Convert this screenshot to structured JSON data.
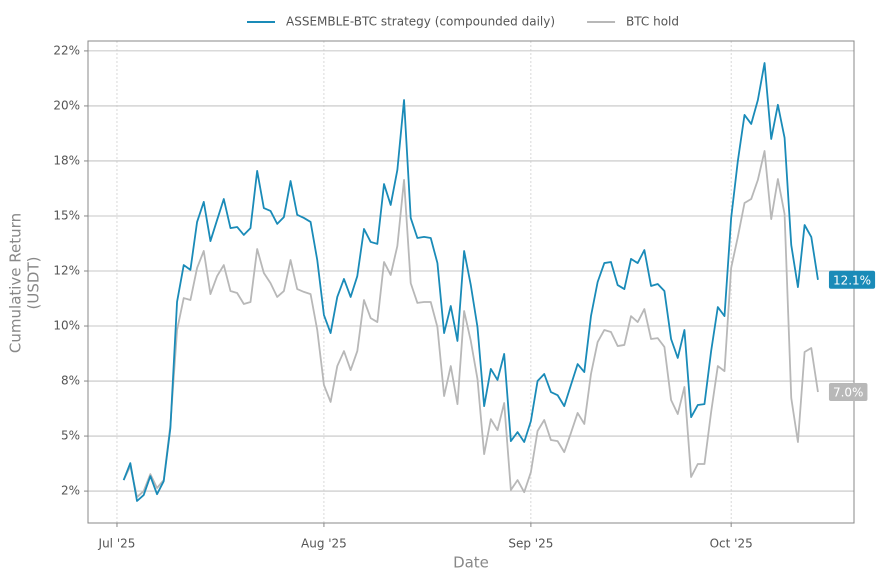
{
  "chart_data": {
    "type": "line",
    "xlabel": "Date",
    "ylabel": [
      "Cumulative Return",
      "(USDT)"
    ],
    "categories": [
      "Jul '25",
      null,
      null,
      null,
      null,
      null,
      null,
      null,
      null,
      null,
      null,
      null,
      null,
      null,
      null,
      null,
      null,
      null,
      null,
      null,
      null,
      null,
      null,
      null,
      null,
      null,
      null,
      null,
      null,
      null,
      null,
      "Aug '25",
      null,
      null,
      null,
      null,
      null,
      null,
      null,
      null,
      null,
      null,
      null,
      null,
      null,
      null,
      null,
      null,
      null,
      null,
      null,
      null,
      null,
      null,
      null,
      null,
      null,
      null,
      null,
      null,
      null,
      null,
      "Sep '25",
      null,
      null,
      null,
      null,
      null,
      null,
      null,
      null,
      null,
      null,
      null,
      null,
      null,
      null,
      null,
      null,
      null,
      null,
      null,
      null,
      null,
      null,
      null,
      null,
      null,
      null,
      null,
      null,
      null,
      "Oct '25",
      null,
      null,
      null,
      null,
      null,
      null,
      null,
      null,
      null,
      null,
      null,
      null,
      null
    ],
    "series": [
      {
        "name": "ASSEMBLE-BTC strategy (compounded daily)",
        "color": "#1a8bb8",
        "values": [
          null,
          3.0,
          3.77,
          2.05,
          2.32,
          3.18,
          2.36,
          2.95,
          5.36,
          11.1,
          12.77,
          12.55,
          14.73,
          15.64,
          13.86,
          14.82,
          15.77,
          14.45,
          14.5,
          14.14,
          14.45,
          17.05,
          15.36,
          15.23,
          14.64,
          14.95,
          16.59,
          15.05,
          14.91,
          14.73,
          13.0,
          10.5,
          9.68,
          11.32,
          12.14,
          11.32,
          12.27,
          14.41,
          13.82,
          13.73,
          16.45,
          15.5,
          17.09,
          20.27,
          14.91,
          14.0,
          14.05,
          14.0,
          12.86,
          9.68,
          10.91,
          9.32,
          13.41,
          11.86,
          9.95,
          6.36,
          8.05,
          7.55,
          8.73,
          4.77,
          5.18,
          4.73,
          5.68,
          7.5,
          7.82,
          7.0,
          6.86,
          6.36,
          7.32,
          8.27,
          7.91,
          10.45,
          12.0,
          12.86,
          12.91,
          11.86,
          11.68,
          13.05,
          12.86,
          13.45,
          11.82,
          11.91,
          11.59,
          9.41,
          8.55,
          9.82,
          5.86,
          6.41,
          6.45,
          8.86,
          10.86,
          10.45,
          14.91,
          17.5,
          19.59,
          19.18,
          20.27,
          21.95,
          18.5,
          20.05,
          18.55,
          13.68,
          11.77,
          14.59,
          14.05,
          12.1
        ],
        "value_labels": [
          null,
          null,
          null,
          null,
          null,
          null,
          null,
          null,
          null,
          null,
          null,
          null,
          null,
          null,
          null,
          null,
          null,
          null,
          null,
          null,
          null,
          null,
          null,
          null,
          null,
          null,
          null,
          null,
          null,
          null,
          null,
          null,
          null,
          null,
          null,
          null,
          null,
          null,
          null,
          null,
          null,
          null,
          null,
          null,
          null,
          null,
          null,
          null,
          null,
          null,
          null,
          null,
          null,
          null,
          null,
          null,
          null,
          null,
          null,
          null,
          null,
          null,
          null,
          null,
          null,
          null,
          null,
          null,
          null,
          null,
          null,
          null,
          null,
          null,
          null,
          null,
          null,
          null,
          null,
          null,
          null,
          null,
          null,
          null,
          null,
          null,
          null,
          null,
          null,
          null,
          null,
          null,
          null,
          null,
          null,
          null,
          null,
          null,
          null,
          null,
          null,
          null,
          null,
          null,
          null,
          "12.1%"
        ]
      },
      {
        "name": "BTC hold",
        "color": "#b8b8b8",
        "values": [
          null,
          3.0,
          3.64,
          2.23,
          2.5,
          3.27,
          2.64,
          3.0,
          5.5,
          9.82,
          11.27,
          11.18,
          12.64,
          13.41,
          11.45,
          12.27,
          12.77,
          11.59,
          11.5,
          11.0,
          11.09,
          13.5,
          12.41,
          11.95,
          11.32,
          11.59,
          13.0,
          11.68,
          11.55,
          11.45,
          9.82,
          7.32,
          6.55,
          8.18,
          8.86,
          8.0,
          8.86,
          11.18,
          10.36,
          10.18,
          12.91,
          12.32,
          13.64,
          16.64,
          11.95,
          11.05,
          11.09,
          11.09,
          9.95,
          6.82,
          8.18,
          6.45,
          10.68,
          9.32,
          7.59,
          4.18,
          5.77,
          5.27,
          6.5,
          2.55,
          3.0,
          2.45,
          3.36,
          5.23,
          5.73,
          4.82,
          4.77,
          4.27,
          5.14,
          6.05,
          5.55,
          7.82,
          9.27,
          9.82,
          9.73,
          9.09,
          9.14,
          10.45,
          10.18,
          10.77,
          9.41,
          9.45,
          9.05,
          6.64,
          6.0,
          7.23,
          3.14,
          3.73,
          3.73,
          6.09,
          8.18,
          7.95,
          12.64,
          14.05,
          15.59,
          15.77,
          16.64,
          17.95,
          14.86,
          16.68,
          15.09,
          6.73,
          4.73,
          8.82,
          9.0,
          7.0
        ],
        "value_labels": [
          null,
          null,
          null,
          null,
          null,
          null,
          null,
          null,
          null,
          null,
          null,
          null,
          null,
          null,
          null,
          null,
          null,
          null,
          null,
          null,
          null,
          null,
          null,
          null,
          null,
          null,
          null,
          null,
          null,
          null,
          null,
          null,
          null,
          null,
          null,
          null,
          null,
          null,
          null,
          null,
          null,
          null,
          null,
          null,
          null,
          null,
          null,
          null,
          null,
          null,
          null,
          null,
          null,
          null,
          null,
          null,
          null,
          null,
          null,
          null,
          null,
          null,
          null,
          null,
          null,
          null,
          null,
          null,
          null,
          null,
          null,
          null,
          null,
          null,
          null,
          null,
          null,
          null,
          null,
          null,
          null,
          null,
          null,
          null,
          null,
          null,
          null,
          null,
          null,
          null,
          null,
          null,
          null,
          null,
          null,
          null,
          null,
          null,
          null,
          null,
          null,
          null,
          null,
          null,
          null,
          "7.0%"
        ]
      }
    ],
    "ylim": [
      1.05,
      22.95
    ],
    "yticks": [
      {
        "value": 2.5,
        "label": "2%"
      },
      {
        "value": 5,
        "label": "5%"
      },
      {
        "value": 7.5,
        "label": "8%"
      },
      {
        "value": 10,
        "label": "10%"
      },
      {
        "value": 12.5,
        "label": "12%"
      },
      {
        "value": 15,
        "label": "15%"
      },
      {
        "value": 17.5,
        "label": "18%"
      },
      {
        "value": 20,
        "label": "20%"
      },
      {
        "value": 22.5,
        "label": "22%"
      }
    ],
    "grid": true,
    "legend": "top"
  }
}
